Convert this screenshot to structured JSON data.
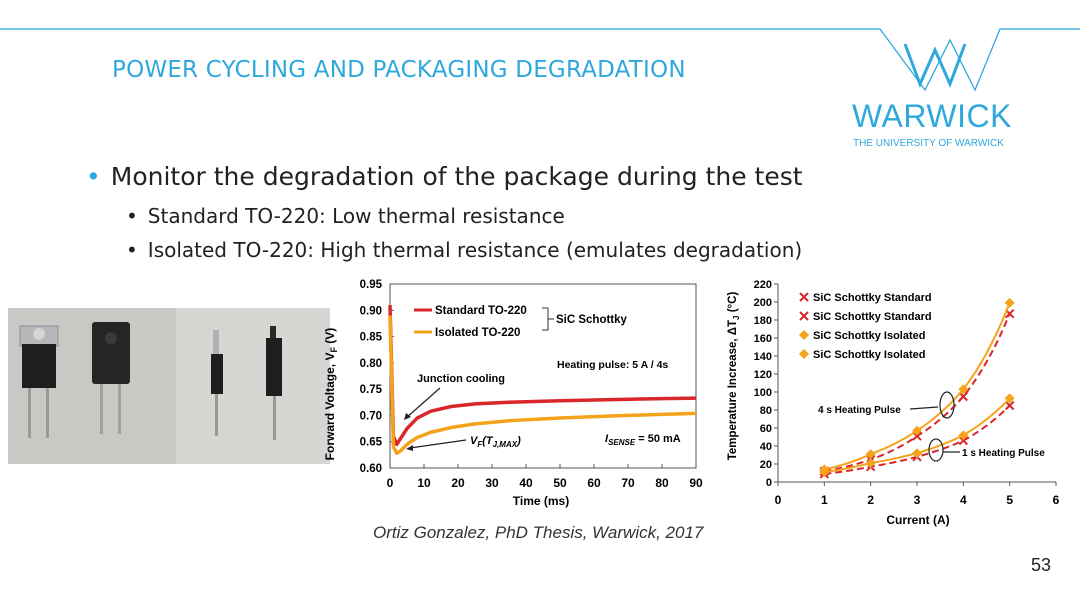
{
  "slide": {
    "title": "POWER CYCLING AND PACKAGING DEGRADATION",
    "logo": "WARWICK",
    "logo_subtitle": "THE UNIVERSITY OF WARWICK",
    "bullets": {
      "main": "Monitor the degradation of the package during the test",
      "sub1": "Standard TO-220: Low thermal resistance",
      "sub2": "Isolated TO-220: High thermal resistance (emulates degradation)"
    },
    "citation": "Ortiz Gonzalez, PhD Thesis, Warwick, 2017",
    "page_number": "53",
    "colors": {
      "accent": "#2fa8dc",
      "red": "#d9262a",
      "orange": "#f5a31a"
    }
  },
  "chart_data": [
    {
      "type": "line",
      "xlabel": "Time (ms)",
      "ylabel": "Forward Voltage, V_F (V)",
      "xlim": [
        0,
        90
      ],
      "ylim": [
        0.6,
        0.95
      ],
      "x_ticks": [
        "0",
        "10",
        "20",
        "30",
        "40",
        "50",
        "60",
        "70",
        "80",
        "90"
      ],
      "y_ticks": [
        "0.60",
        "0.65",
        "0.70",
        "0.75",
        "0.80",
        "0.85",
        "0.90",
        "0.95"
      ],
      "series": [
        {
          "name": "Standard TO-220",
          "color": "#d9262a",
          "x": [
            0,
            1,
            2,
            3,
            5,
            8,
            12,
            18,
            25,
            35,
            50,
            65,
            80,
            90
          ],
          "y": [
            0.91,
            0.66,
            0.645,
            0.655,
            0.675,
            0.695,
            0.708,
            0.717,
            0.722,
            0.725,
            0.728,
            0.73,
            0.732,
            0.733
          ]
        },
        {
          "name": "Isolated TO-220",
          "color": "#f5a31a",
          "x": [
            0,
            1,
            2,
            3,
            5,
            8,
            12,
            18,
            25,
            35,
            50,
            65,
            80,
            90
          ],
          "y": [
            0.89,
            0.64,
            0.628,
            0.632,
            0.645,
            0.658,
            0.668,
            0.677,
            0.684,
            0.69,
            0.695,
            0.699,
            0.702,
            0.704
          ]
        }
      ],
      "legend_group_label": "SiC Schottky",
      "annotations": {
        "heating_pulse": "Heating pulse: 5 A / 4s",
        "junction_cooling": "Junction cooling",
        "vf_tjmax_main": "V",
        "vf_tjmax_sub1": "F",
        "vf_tjmax_mid": "(T",
        "vf_tjmax_sub2": "J,MAX",
        "vf_tjmax_end": ")",
        "isense_main": "I",
        "isense_sub": "SENSE",
        "isense_value": " = 50 mA"
      }
    },
    {
      "type": "scatter",
      "xlabel": "Current (A)",
      "ylabel": "Temperature Increase, ΔT_J (°C)",
      "xlim": [
        0,
        6
      ],
      "ylim": [
        0,
        220
      ],
      "x_ticks": [
        "0",
        "1",
        "2",
        "3",
        "4",
        "5",
        "6"
      ],
      "y_ticks": [
        "0",
        "20",
        "40",
        "60",
        "80",
        "100",
        "120",
        "140",
        "160",
        "180",
        "200",
        "220"
      ],
      "series": [
        {
          "name": "SiC Schottky Standard",
          "color": "#d9262a",
          "marker": "x",
          "group": "1 s",
          "x": [
            1,
            2,
            3,
            4,
            5
          ],
          "y": [
            9,
            17,
            28,
            46,
            85
          ]
        },
        {
          "name": "SiC Schottky Standard",
          "color": "#d9262a",
          "marker": "x",
          "group": "4 s",
          "x": [
            1,
            2,
            3,
            4,
            5
          ],
          "y": [
            12,
            25,
            51,
            95,
            187
          ]
        },
        {
          "name": "SiC Schottky Isolated",
          "color": "#f5a31a",
          "marker": "diamond",
          "group": "1 s",
          "x": [
            1,
            2,
            3,
            4,
            5
          ],
          "y": [
            11,
            21,
            32,
            52,
            93
          ]
        },
        {
          "name": "SiC Schottky Isolated",
          "color": "#f5a31a",
          "marker": "diamond",
          "group": "4 s",
          "x": [
            1,
            2,
            3,
            4,
            5
          ],
          "y": [
            14,
            31,
            57,
            103,
            199
          ]
        }
      ],
      "annotations": {
        "four_s": "4 s Heating Pulse",
        "one_s": "1 s Heating Pulse"
      }
    }
  ]
}
